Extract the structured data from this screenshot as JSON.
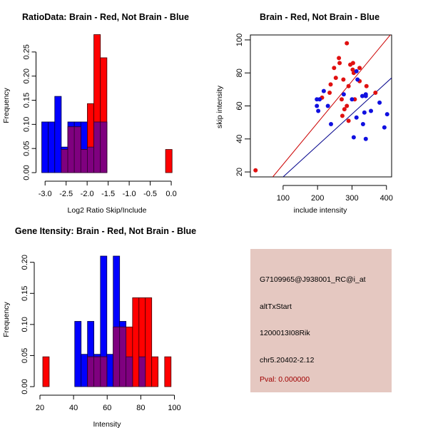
{
  "colors": {
    "brain": "#ff0000",
    "not_brain": "#0000ff",
    "overlap": "#7f007f",
    "brain_line": "#cc0000",
    "not_brain_line": "#00008b",
    "panel_bg": "#e5c8c1",
    "pval_text": "#a00000"
  },
  "chart_data": [
    {
      "id": "ratio-hist",
      "type": "bar",
      "subtype": "overlaid-histogram",
      "title": "RatioData: Brain - Red, Not Brain - Blue",
      "xlabel": "Log2 Ratio Skip/Include",
      "ylabel": "Frequency",
      "xlim": [
        -3.08,
        0.05
      ],
      "ylim": [
        0,
        0.286
      ],
      "xticks": [
        -3.0,
        -2.5,
        -2.0,
        -1.5,
        -1.0,
        -0.5,
        0.0
      ],
      "xtick_labels": [
        "-3.0",
        "-2.5",
        "-2.0",
        "-1.5",
        "-1.0",
        "-0.5",
        "0.0"
      ],
      "yticks": [
        0.0,
        0.05,
        0.1,
        0.15,
        0.2,
        0.25
      ],
      "ytick_labels": [
        "0.00",
        "0.05",
        "0.10",
        "0.15",
        "0.20",
        "0.25"
      ],
      "grid": false,
      "series": [
        {
          "name": "Not Brain",
          "color": "blue",
          "bins": [
            {
              "x0": -3.08,
              "x1": -2.925,
              "value": 0.105
            },
            {
              "x0": -2.925,
              "x1": -2.77,
              "value": 0.105
            },
            {
              "x0": -2.77,
              "x1": -2.615,
              "value": 0.158
            },
            {
              "x0": -2.615,
              "x1": -2.46,
              "value": 0.053
            },
            {
              "x0": -2.46,
              "x1": -2.305,
              "value": 0.105
            },
            {
              "x0": -2.305,
              "x1": -2.15,
              "value": 0.105
            },
            {
              "x0": -2.15,
              "x1": -1.995,
              "value": 0.105
            },
            {
              "x0": -1.995,
              "x1": -1.84,
              "value": 0.053
            },
            {
              "x0": -1.84,
              "x1": -1.685,
              "value": 0.105
            },
            {
              "x0": -1.685,
              "x1": -1.53,
              "value": 0.105
            }
          ]
        },
        {
          "name": "Brain",
          "color": "red",
          "bins": [
            {
              "x0": -2.615,
              "x1": -2.46,
              "value": 0.048
            },
            {
              "x0": -2.46,
              "x1": -2.305,
              "value": 0.095
            },
            {
              "x0": -2.305,
              "x1": -2.15,
              "value": 0.095
            },
            {
              "x0": -2.15,
              "x1": -1.995,
              "value": 0.048
            },
            {
              "x0": -1.995,
              "x1": -1.84,
              "value": 0.143
            },
            {
              "x0": -1.84,
              "x1": -1.685,
              "value": 0.286
            },
            {
              "x0": -1.685,
              "x1": -1.53,
              "value": 0.238
            },
            {
              "x0": -0.135,
              "x1": 0.02,
              "value": 0.048
            }
          ]
        }
      ]
    },
    {
      "id": "intensity-scatter",
      "type": "scatter",
      "title": "Brain - Red, Not Brain - Blue",
      "xlabel": "include intensity",
      "ylabel": "skip intensity",
      "xlim": [
        5,
        415
      ],
      "ylim": [
        17,
        103
      ],
      "xticks": [
        100,
        200,
        300,
        400
      ],
      "xtick_labels": [
        "100",
        "200",
        "300",
        "400"
      ],
      "yticks": [
        20,
        40,
        60,
        80,
        100
      ],
      "ytick_labels": [
        "20",
        "40",
        "60",
        "80",
        "100"
      ],
      "grid": false,
      "series": [
        {
          "name": "Brain",
          "color": "red",
          "points": [
            [
              20,
              21
            ],
            [
              285,
              98
            ],
            [
              262,
              89
            ],
            [
              248,
              83
            ],
            [
              264,
              86
            ],
            [
              295,
              85
            ],
            [
              303,
              86
            ],
            [
              302,
              82
            ],
            [
              322,
              83
            ],
            [
              305,
              80
            ],
            [
              253,
              77
            ],
            [
              275,
              76
            ],
            [
              322,
              75
            ],
            [
              238,
              73
            ],
            [
              290,
              72
            ],
            [
              342,
              72
            ],
            [
              368,
              68
            ],
            [
              235,
              68
            ],
            [
              270,
              64
            ],
            [
              308,
              64
            ],
            [
              285,
              60
            ],
            [
              213,
              65
            ],
            [
              278,
              58
            ],
            [
              272,
              54
            ],
            [
              290,
              51
            ]
          ]
        },
        {
          "name": "Not Brain",
          "color": "blue",
          "points": [
            [
              313,
              81
            ],
            [
              316,
              76
            ],
            [
              218,
              69
            ],
            [
              276,
              67
            ],
            [
              300,
              64
            ],
            [
              330,
              66
            ],
            [
              340,
              67
            ],
            [
              340,
              66
            ],
            [
              206,
              64
            ],
            [
              198,
              64
            ],
            [
              198,
              60
            ],
            [
              202,
              57
            ],
            [
              230,
              60
            ],
            [
              380,
              62
            ],
            [
              355,
              57
            ],
            [
              336,
              56
            ],
            [
              402,
              55
            ],
            [
              239,
              49
            ],
            [
              313,
              53
            ],
            [
              332,
              49
            ],
            [
              394,
              47
            ],
            [
              305,
              41
            ],
            [
              340,
              40
            ]
          ]
        }
      ],
      "lines": [
        {
          "name": "Brain fit",
          "color": "red",
          "x": [
            70,
            415
          ],
          "y": [
            17,
            104
          ]
        },
        {
          "name": "Not Brain fit",
          "color": "darkblue",
          "x": [
            100,
            415
          ],
          "y": [
            17,
            77
          ]
        }
      ]
    },
    {
      "id": "gene-intensity-hist",
      "type": "bar",
      "subtype": "overlaid-histogram",
      "title": "Gene Itensity: Brain - Red, Not Brain - Blue",
      "xlabel": "Intensity",
      "ylabel": "Frequency",
      "xlim": [
        20,
        100
      ],
      "ylim": [
        0,
        0.21
      ],
      "xticks": [
        20,
        40,
        60,
        80,
        100
      ],
      "xtick_labels": [
        "20",
        "40",
        "60",
        "80",
        "100"
      ],
      "yticks": [
        0.0,
        0.05,
        0.1,
        0.15,
        0.2
      ],
      "ytick_labels": [
        "0.00",
        "0.05",
        "0.10",
        "0.15",
        "0.20"
      ],
      "grid": false,
      "series": [
        {
          "name": "Not Brain",
          "color": "blue",
          "bins": [
            {
              "x0": 40.7,
              "x1": 44.5,
              "value": 0.105
            },
            {
              "x0": 44.5,
              "x1": 48.3,
              "value": 0.052
            },
            {
              "x0": 48.3,
              "x1": 52.1,
              "value": 0.105
            },
            {
              "x0": 52.1,
              "x1": 56.0,
              "value": 0.052
            },
            {
              "x0": 56.0,
              "x1": 59.8,
              "value": 0.21
            },
            {
              "x0": 59.8,
              "x1": 63.6,
              "value": 0.052
            },
            {
              "x0": 63.6,
              "x1": 67.4,
              "value": 0.21
            },
            {
              "x0": 67.4,
              "x1": 71.2,
              "value": 0.105
            },
            {
              "x0": 71.2,
              "x1": 75.1,
              "value": 0.048
            },
            {
              "x0": 78.9,
              "x1": 82.7,
              "value": 0.048
            }
          ]
        },
        {
          "name": "Brain",
          "color": "red",
          "bins": [
            {
              "x0": 21.7,
              "x1": 25.5,
              "value": 0.048
            },
            {
              "x0": 48.3,
              "x1": 52.1,
              "value": 0.048
            },
            {
              "x0": 52.1,
              "x1": 56.0,
              "value": 0.048
            },
            {
              "x0": 56.0,
              "x1": 59.8,
              "value": 0.048
            },
            {
              "x0": 63.6,
              "x1": 67.4,
              "value": 0.096
            },
            {
              "x0": 67.4,
              "x1": 71.2,
              "value": 0.096
            },
            {
              "x0": 71.2,
              "x1": 75.1,
              "value": 0.096
            },
            {
              "x0": 75.1,
              "x1": 78.9,
              "value": 0.143
            },
            {
              "x0": 78.9,
              "x1": 82.7,
              "value": 0.143
            },
            {
              "x0": 82.7,
              "x1": 86.5,
              "value": 0.143
            },
            {
              "x0": 86.5,
              "x1": 90.3,
              "value": 0.048
            },
            {
              "x0": 94.2,
              "x1": 98.0,
              "value": 0.048
            }
          ]
        }
      ]
    }
  ],
  "info_panel": {
    "probe_id": "G7109965@J938001_RC@i_at",
    "event_type": "altTxStart",
    "gene": "1200013I08Rik",
    "location": "chr5.20402-2.12",
    "pval": "Pval: 0.000000"
  }
}
